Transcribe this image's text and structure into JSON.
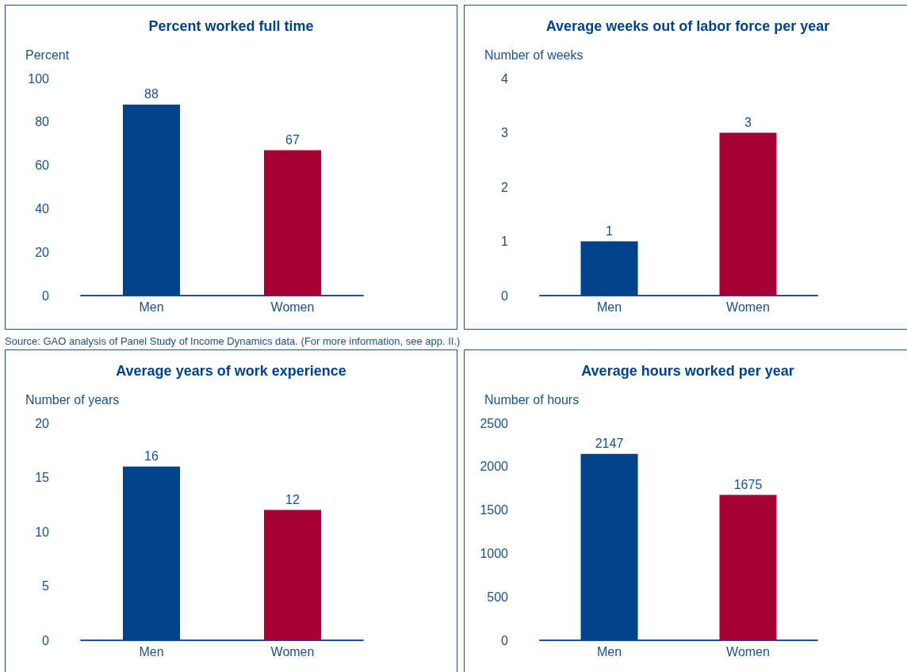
{
  "chart_data": [
    {
      "type": "bar",
      "title": "Percent worked full time",
      "ylabel": "Percent",
      "categories": [
        "Men",
        "Women"
      ],
      "values": [
        88,
        67
      ],
      "colors": [
        "#00438a",
        "#a50034"
      ],
      "ylim": [
        0,
        100
      ],
      "yticks": [
        0,
        20,
        40,
        60,
        80,
        100
      ],
      "grid": false,
      "data_labels": true,
      "annotations": [
        "Source: GAO analysis of Panel Study of Income Dynamics data.  (For more information, see app. II.)"
      ]
    },
    {
      "type": "bar",
      "title": "Average weeks out of labor force per year",
      "ylabel": "Number of weeks",
      "categories": [
        "Men",
        "Women"
      ],
      "values": [
        1,
        3
      ],
      "colors": [
        "#00438a",
        "#a50034"
      ],
      "ylim": [
        0,
        4
      ],
      "yticks": [
        0,
        1,
        2,
        3,
        4
      ],
      "grid": false,
      "data_labels": true
    },
    {
      "type": "bar",
      "title": "Average years of work experience",
      "ylabel": "Number of years",
      "categories": [
        "Men",
        "Women"
      ],
      "values": [
        16,
        12
      ],
      "colors": [
        "#00438a",
        "#a50034"
      ],
      "ylim": [
        0,
        20
      ],
      "yticks": [
        0,
        5,
        10,
        15,
        20
      ],
      "grid": false,
      "data_labels": true
    },
    {
      "type": "bar",
      "title": "Average hours worked per year",
      "ylabel": "Number of hours",
      "categories": [
        "Men",
        "Women"
      ],
      "values": [
        2147,
        1675
      ],
      "colors": [
        "#00438a",
        "#a50034"
      ],
      "ylim": [
        0,
        2500
      ],
      "yticks": [
        0,
        500,
        1000,
        1500,
        2000,
        2500
      ],
      "grid": false,
      "data_labels": true
    }
  ]
}
